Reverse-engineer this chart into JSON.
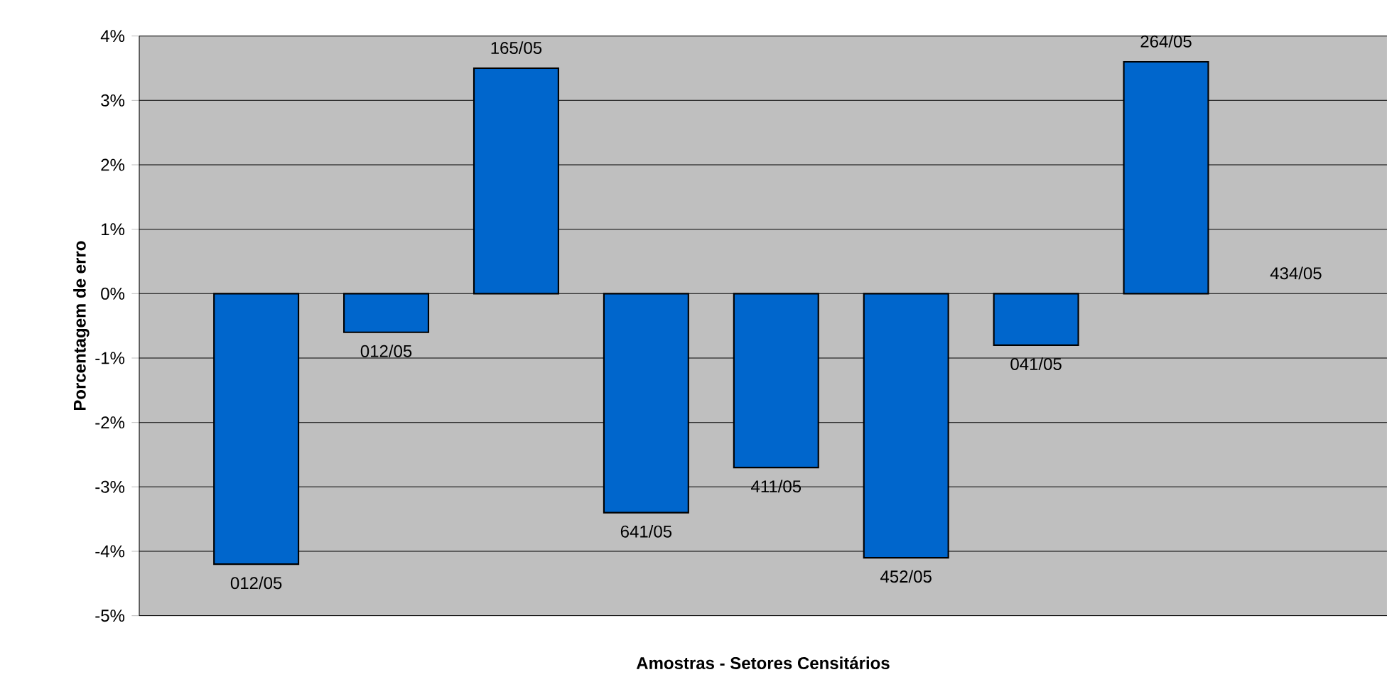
{
  "chart_data": {
    "type": "bar",
    "xlabel": "Amostras - Setores Censitários",
    "ylabel": "Porcentagem de erro",
    "categories": [
      "012/05",
      "012/05",
      "165/05",
      "641/05",
      "411/05",
      "452/05",
      "041/05",
      "264/05",
      "434/05"
    ],
    "values": [
      -4.2,
      -0.6,
      3.5,
      -3.4,
      -2.7,
      -4.1,
      -0.8,
      3.6,
      0
    ],
    "color": "#0066cc",
    "ylim": [
      -5,
      4
    ],
    "yticks": [
      {
        "value": -5,
        "label": "-5%"
      },
      {
        "value": -4,
        "label": "-4%"
      },
      {
        "value": -3,
        "label": "-3%"
      },
      {
        "value": -2,
        "label": "-2%"
      },
      {
        "value": -1,
        "label": "-1%"
      },
      {
        "value": 0,
        "label": "0%"
      },
      {
        "value": 1,
        "label": "1%"
      },
      {
        "value": 2,
        "label": "2%"
      },
      {
        "value": 3,
        "label": "3%"
      },
      {
        "value": 4,
        "label": "4%"
      }
    ],
    "grid": "y"
  }
}
